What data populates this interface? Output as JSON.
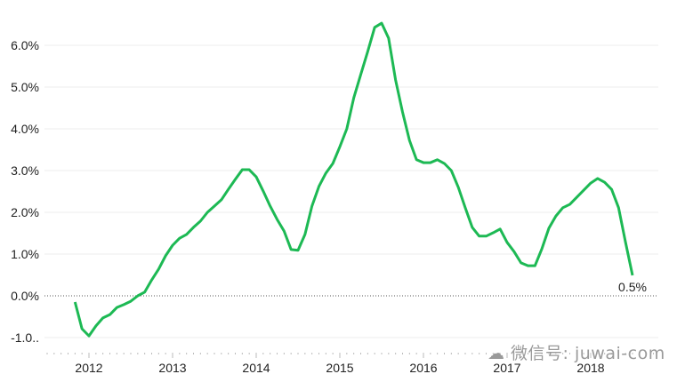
{
  "chart_data": {
    "type": "line",
    "title": "",
    "xlabel": "",
    "ylabel": "",
    "ylim": [
      -1.0,
      6.5
    ],
    "y_ticks": [
      "-1.0..",
      "0.0%",
      "1.0%",
      "2.0%",
      "3.0%",
      "4.0%",
      "5.0%",
      "6.0%"
    ],
    "y_tick_values": [
      -1,
      0,
      1,
      2,
      3,
      4,
      5,
      6
    ],
    "x_ticks": [
      "2012",
      "2013",
      "2014",
      "2015",
      "2016",
      "2017",
      "2018"
    ],
    "grid": true,
    "line_color": "#1db954",
    "end_label": "0.5%",
    "x": [
      "2011-11",
      "2011-12",
      "2012-01",
      "2012-02",
      "2012-03",
      "2012-04",
      "2012-05",
      "2012-06",
      "2012-07",
      "2012-08",
      "2012-09",
      "2012-10",
      "2012-11",
      "2012-12",
      "2013-01",
      "2013-02",
      "2013-03",
      "2013-04",
      "2013-05",
      "2013-06",
      "2013-07",
      "2013-08",
      "2013-09",
      "2013-10",
      "2013-11",
      "2013-12",
      "2014-01",
      "2014-02",
      "2014-03",
      "2014-04",
      "2014-05",
      "2014-06",
      "2014-07",
      "2014-08",
      "2014-09",
      "2014-10",
      "2014-11",
      "2014-12",
      "2015-01",
      "2015-02",
      "2015-03",
      "2015-04",
      "2015-05",
      "2015-06",
      "2015-07",
      "2015-08",
      "2015-09",
      "2015-10",
      "2015-11",
      "2015-12",
      "2016-01",
      "2016-02",
      "2016-03",
      "2016-04",
      "2016-05",
      "2016-06",
      "2016-07",
      "2016-08",
      "2016-09",
      "2016-10",
      "2016-11",
      "2016-12",
      "2017-01",
      "2017-02",
      "2017-03",
      "2017-04",
      "2017-05",
      "2017-06",
      "2017-07",
      "2017-08",
      "2017-09",
      "2017-10",
      "2017-11",
      "2017-12",
      "2018-01",
      "2018-02",
      "2018-03",
      "2018-04",
      "2018-05",
      "2018-06",
      "2018-07"
    ],
    "values": [
      -0.15,
      -0.79,
      -0.96,
      -0.72,
      -0.53,
      -0.45,
      -0.28,
      -0.21,
      -0.13,
      0.0,
      0.09,
      0.38,
      0.64,
      0.96,
      1.21,
      1.38,
      1.47,
      1.64,
      1.79,
      2.0,
      2.15,
      2.3,
      2.55,
      2.79,
      3.02,
      3.02,
      2.85,
      2.51,
      2.15,
      1.83,
      1.55,
      1.11,
      1.09,
      1.47,
      2.15,
      2.62,
      2.94,
      3.17,
      3.57,
      4.0,
      4.74,
      5.3,
      5.85,
      6.43,
      6.53,
      6.17,
      5.17,
      4.4,
      3.72,
      3.26,
      3.19,
      3.19,
      3.26,
      3.17,
      3.0,
      2.6,
      2.11,
      1.64,
      1.43,
      1.43,
      1.51,
      1.6,
      1.28,
      1.06,
      0.79,
      0.72,
      0.72,
      1.13,
      1.62,
      1.91,
      2.11,
      2.19,
      2.36,
      2.53,
      2.7,
      2.81,
      2.72,
      2.55,
      2.11,
      1.28,
      0.49
    ]
  },
  "watermark": "微信号: juwai-com"
}
